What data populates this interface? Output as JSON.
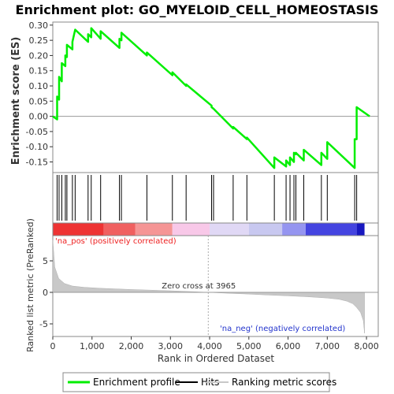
{
  "chart_data": {
    "type": "line",
    "title": "Enrichment plot: GO_MYELOID_CELL_HOMEOSTASIS",
    "ylabel_top": "Enrichment score (ES)",
    "ylabel_bottom": "Ranked list metric (PreRanked)",
    "xlabel": "Rank in Ordered Dataset",
    "xlim": [
      0,
      8300
    ],
    "es_ylim": [
      -0.185,
      0.31
    ],
    "metric_ylim": [
      -7.0,
      9.0
    ],
    "x_ticks": [
      "0",
      "1,000",
      "2,000",
      "3,000",
      "4,000",
      "5,000",
      "6,000",
      "7,000",
      "8,000"
    ],
    "x_tick_values": [
      0,
      1000,
      2000,
      3000,
      4000,
      5000,
      6000,
      7000,
      8000
    ],
    "es_ticks": [
      "0.30",
      "0.25",
      "0.20",
      "0.15",
      "0.10",
      "0.05",
      "0.00",
      "-0.05",
      "-0.10",
      "-0.15"
    ],
    "es_tick_values": [
      0.3,
      0.25,
      0.2,
      0.15,
      0.1,
      0.05,
      0.0,
      -0.05,
      -0.1,
      -0.15
    ],
    "metric_ticks": [
      "5",
      "0",
      "-5"
    ],
    "metric_tick_values": [
      5,
      0,
      -5
    ],
    "series": [
      {
        "name": "Enrichment profile",
        "color": "#00ee00",
        "x": [
          0,
          110,
          110,
          160,
          160,
          230,
          230,
          320,
          320,
          360,
          360,
          500,
          500,
          570,
          570,
          900,
          900,
          980,
          980,
          1220,
          1220,
          1700,
          1700,
          1750,
          1750,
          2400,
          2400,
          3050,
          3050,
          3400,
          3400,
          4050,
          4050,
          4100,
          4100,
          4600,
          4600,
          4950,
          4950,
          5650,
          5650,
          5950,
          5950,
          6050,
          6050,
          6150,
          6150,
          6200,
          6200,
          6400,
          6400,
          6850,
          6850,
          7000,
          7000,
          7700,
          7700,
          7750,
          7750,
          8080
        ],
        "y": [
          0.0,
          -0.01,
          0.065,
          0.055,
          0.13,
          0.115,
          0.175,
          0.165,
          0.2,
          0.195,
          0.235,
          0.22,
          0.245,
          0.285,
          0.285,
          0.245,
          0.27,
          0.26,
          0.29,
          0.255,
          0.28,
          0.225,
          0.255,
          0.25,
          0.275,
          0.2,
          0.21,
          0.135,
          0.145,
          0.1,
          0.105,
          0.035,
          0.03,
          0.025,
          0.025,
          -0.04,
          -0.035,
          -0.075,
          -0.07,
          -0.17,
          -0.135,
          -0.165,
          -0.145,
          -0.16,
          -0.135,
          -0.15,
          -0.12,
          -0.125,
          -0.12,
          -0.145,
          -0.11,
          -0.16,
          -0.12,
          -0.14,
          -0.085,
          -0.17,
          -0.075,
          -0.075,
          0.03,
          0.0
        ]
      }
    ],
    "hits": [
      110,
      160,
      230,
      320,
      360,
      500,
      570,
      900,
      980,
      1220,
      1700,
      1750,
      2400,
      3050,
      3400,
      4050,
      4100,
      4600,
      4950,
      5650,
      5950,
      6050,
      6150,
      6200,
      6400,
      6850,
      7000,
      7700,
      7750
    ],
    "ranked_metric": {
      "x": [
        0,
        50,
        150,
        300,
        500,
        800,
        1200,
        1600,
        2000,
        2500,
        3000,
        3500,
        3965,
        4500,
        5000,
        5500,
        6000,
        6500,
        7000,
        7300,
        7500,
        7650,
        7750,
        7850,
        7920,
        7950
      ],
      "y": [
        8.3,
        4.0,
        2.2,
        1.4,
        1.0,
        0.8,
        0.65,
        0.55,
        0.45,
        0.35,
        0.25,
        0.12,
        0.0,
        -0.15,
        -0.28,
        -0.42,
        -0.55,
        -0.7,
        -0.9,
        -1.1,
        -1.4,
        -1.8,
        -2.4,
        -3.2,
        -4.5,
        -6.5
      ]
    },
    "zero_cross_label": "Zero cross at 3965",
    "zero_cross": 3965,
    "pos_label": "'na_pos' (positively correlated)",
    "neg_label": "'na_neg' (negatively correlated)",
    "heatmap_colors": [
      "#ee3333",
      "#f06060",
      "#f59595",
      "#f8c8e8",
      "#e0d8f5",
      "#c8c8f0",
      "#9595f0",
      "#4444e0",
      "#1818c0"
    ],
    "heatmap_stops": [
      0,
      1300,
      2100,
      3050,
      4000,
      5000,
      5850,
      6450,
      7750,
      7950
    ],
    "legend": [
      {
        "label": "Enrichment profile",
        "color": "#00ee00"
      },
      {
        "label": "Hits",
        "color": "#000000"
      },
      {
        "label": "Ranking metric scores",
        "color": "#c8c8c8"
      }
    ]
  }
}
